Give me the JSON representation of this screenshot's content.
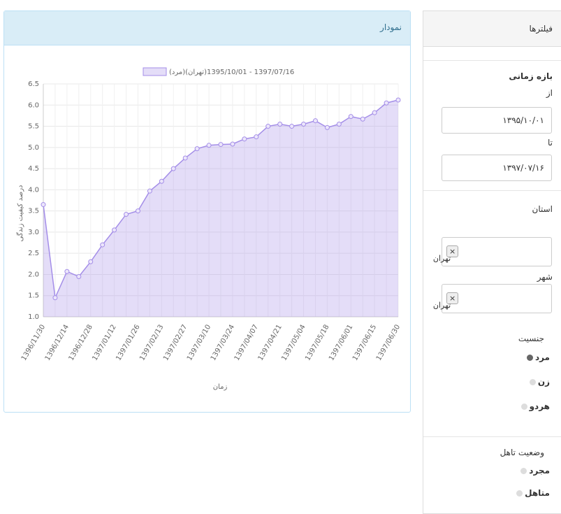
{
  "panel": {
    "title": "نمودار"
  },
  "sidebar": {
    "title": "فیلترها",
    "date_range": {
      "label": "بازه زمانی",
      "from_label": "از",
      "from": "۱۳۹۵/۱۰/۰۱",
      "to_label": "تا",
      "to": "۱۳۹۷/۰۷/۱۶"
    },
    "province": {
      "label": "استان",
      "tag": "تهران"
    },
    "city": {
      "label": "شهر",
      "tag": "تهران"
    },
    "gender": {
      "label": "جنسیت",
      "options": [
        "مرد",
        "زن",
        "هردو"
      ],
      "selected": 0
    },
    "marital": {
      "label": "وضعیت تاهل",
      "options": [
        "مجرد",
        "متاهل"
      ]
    }
  },
  "chart_data": {
    "type": "line",
    "x_label": "زمان",
    "y_label": "درصد کیفیت زندگی",
    "categories": [
      "1396/11/30",
      null,
      "1396/12/14",
      null,
      "1396/12/28",
      null,
      "1397/01/12",
      null,
      "1397/01/26",
      null,
      "1397/02/13",
      null,
      "1397/02/27",
      null,
      "1397/03/10",
      null,
      "1397/03/24",
      null,
      "1397/04/07",
      null,
      "1397/04/21",
      null,
      "1397/05/04",
      null,
      "1397/05/18",
      null,
      "1397/06/01",
      null,
      "1397/06/15",
      null,
      "1397/06/30"
    ],
    "series": [
      {
        "name": "(مرد)(تهران)1397/07/16 - 1395/10/01",
        "color": "#a48ee8",
        "values": [
          3.65,
          1.45,
          2.07,
          1.95,
          2.3,
          2.7,
          3.05,
          3.42,
          3.5,
          3.97,
          4.2,
          4.5,
          4.75,
          4.97,
          5.05,
          5.07,
          5.08,
          5.2,
          5.25,
          5.5,
          5.55,
          5.5,
          5.55,
          5.63,
          5.47,
          5.55,
          5.73,
          5.67,
          5.82,
          6.05,
          6.12
        ]
      }
    ],
    "ylim": [
      1.0,
      6.5
    ],
    "yticks": [
      {
        "value": 1.0,
        "label": "1.0"
      },
      1.5,
      {
        "value": 2.0,
        "label": "2.0"
      },
      2.5,
      {
        "value": 3.0,
        "label": "3.0"
      },
      3.5,
      {
        "value": 4.0,
        "label": "4.0"
      },
      4.5,
      {
        "value": 5.0,
        "label": "5.0"
      },
      5.5,
      {
        "value": 6.0,
        "label": "6.0"
      },
      6.5
    ],
    "grid": true
  }
}
